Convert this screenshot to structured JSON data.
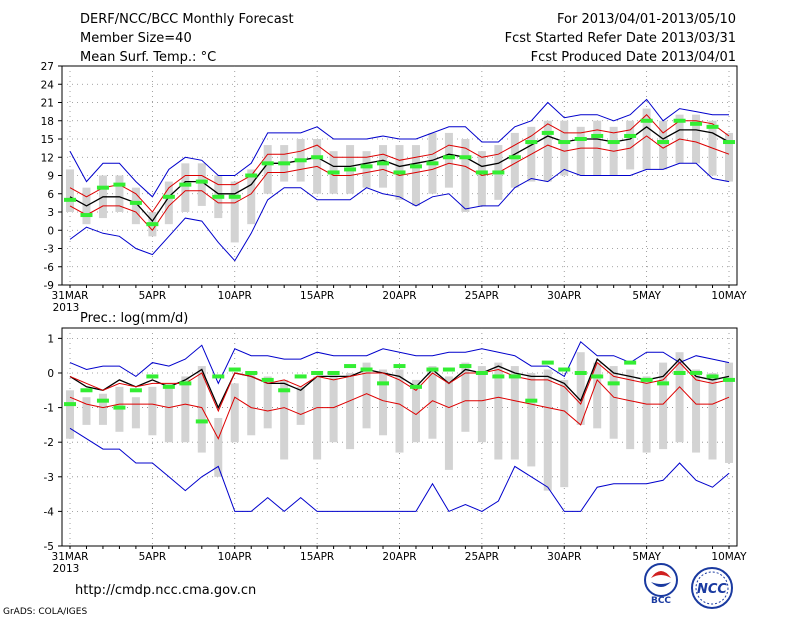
{
  "header": {
    "title": "DERF/NCC/BCC Monthly Forecast",
    "member_size": "Member Size=40",
    "variable": "Mean Surf. Temp.: °C",
    "forecast_period": "For 2013/04/01-2013/05/10",
    "started_refer": "Fcst Started Refer Date 2013/03/31",
    "produced": "Fcst Produced Date 2013/04/01"
  },
  "footer": {
    "url": "http://cmdp.ncc.cma.gov.cn",
    "grads": "GrADS: COLA/IGES",
    "logo_bcc": "BCC",
    "logo_ncc": "NCC"
  },
  "colors": {
    "gray_box": "#d3d3d3",
    "blue": "#0000cc",
    "red": "#dd0000",
    "black": "#000000",
    "green": "#33ee33"
  },
  "chart_data": [
    {
      "type": "ensemble-line",
      "title": "Mean Surf. Temp.: °C",
      "x_tick_labels": [
        "31MAR",
        "5APR",
        "10APR",
        "15APR",
        "20APR",
        "25APR",
        "30APR",
        "5MAY",
        "10MAY"
      ],
      "x_year_label": "2013",
      "yticks": [
        27,
        24,
        21,
        18,
        15,
        12,
        9,
        6,
        3,
        0,
        -3,
        -6,
        -9
      ],
      "ylim": [
        -9,
        27
      ],
      "days": 41,
      "series": [
        {
          "name": "max",
          "color": "blue",
          "values": [
            13,
            8,
            11,
            11,
            8,
            5.5,
            10,
            12,
            11.5,
            9,
            9,
            11,
            16,
            16,
            16,
            17,
            15,
            15,
            15,
            15.5,
            15,
            15,
            16,
            17,
            17,
            14.5,
            14.5,
            17,
            18,
            21,
            18.5,
            19,
            19,
            18,
            19,
            21.5,
            18,
            20,
            19.5,
            19,
            19
          ]
        },
        {
          "name": "upper",
          "color": "red",
          "values": [
            7,
            5.5,
            7,
            7.5,
            6,
            3,
            7,
            9,
            9,
            7.5,
            7.5,
            9,
            12.5,
            12.5,
            13,
            14,
            12,
            12,
            12,
            12.5,
            11.5,
            12,
            12.5,
            14,
            13.5,
            12,
            12.5,
            14,
            15.5,
            17.5,
            16,
            16,
            16.5,
            16,
            16.5,
            19,
            16,
            18,
            18,
            17.5,
            15.5
          ]
        },
        {
          "name": "mean",
          "color": "black",
          "values": [
            5.5,
            4,
            5.5,
            5.5,
            4.5,
            1.5,
            5.5,
            8,
            8,
            6,
            6,
            7.5,
            11,
            11,
            11.5,
            12,
            10.5,
            10.5,
            11,
            11.5,
            10.5,
            11,
            11.5,
            12.5,
            12,
            10.5,
            11,
            12.5,
            14,
            15.5,
            14.5,
            15,
            15,
            14.5,
            15,
            17,
            15,
            16.5,
            16.5,
            16,
            14.5
          ]
        },
        {
          "name": "lower",
          "color": "red",
          "values": [
            4,
            2.5,
            4,
            4,
            3,
            0,
            4,
            6.5,
            6.5,
            4.5,
            4.5,
            6,
            9.5,
            9.5,
            10,
            10.5,
            9,
            9,
            9.5,
            10,
            9,
            9.5,
            10,
            11,
            10.5,
            9,
            9.5,
            11,
            12.5,
            14,
            13,
            13.5,
            13.5,
            13,
            13.5,
            15.5,
            13.5,
            15,
            14.5,
            13.5,
            12.5
          ]
        },
        {
          "name": "min",
          "color": "blue",
          "values": [
            -1.5,
            0.5,
            -0.5,
            -1,
            -3,
            -4,
            -1,
            2,
            1.5,
            -2,
            -5,
            -0.5,
            5,
            7,
            7,
            5,
            5,
            5,
            7,
            6,
            5.5,
            4,
            5.5,
            6,
            3.5,
            4,
            4,
            7,
            8.5,
            8,
            10,
            9,
            9,
            9,
            9,
            10,
            10,
            11,
            11,
            8.5,
            8
          ]
        },
        {
          "name": "observed",
          "color": "green",
          "markers": true,
          "values": [
            5,
            2.5,
            7,
            7.5,
            4.5,
            1,
            5.5,
            7.5,
            8,
            5.5,
            5.5,
            9,
            11,
            11,
            11.5,
            12,
            9.5,
            10,
            10.5,
            11,
            9.5,
            10.5,
            11,
            12,
            12,
            9.5,
            9.5,
            12,
            14.5,
            16,
            14.5,
            15,
            15.5,
            14.5,
            15.5,
            18,
            14.5,
            18,
            17.5,
            17,
            14.5
          ]
        }
      ],
      "boxes": {
        "low": [
          3,
          1,
          2,
          3,
          1,
          -1,
          1,
          3,
          4,
          2,
          -2,
          1,
          6,
          8,
          8,
          6,
          6,
          6,
          7,
          7,
          5,
          4,
          6,
          7,
          3,
          4,
          5,
          7,
          8,
          8,
          9,
          9,
          9,
          9,
          10,
          10,
          10,
          11,
          11,
          9,
          8
        ],
        "high": [
          10,
          7,
          9,
          9,
          7,
          3,
          8,
          11,
          11,
          9,
          8,
          10,
          14,
          14,
          15,
          15,
          13,
          14,
          13,
          14,
          14,
          14,
          16,
          16,
          15,
          13,
          14,
          16,
          17,
          18,
          18,
          17,
          18,
          17,
          18,
          20,
          18,
          19,
          19,
          18,
          16
        ]
      }
    },
    {
      "type": "ensemble-line",
      "title": "Prec.: log(mm/d)",
      "x_tick_labels": [
        "31MAR",
        "5APR",
        "10APR",
        "15APR",
        "20APR",
        "25APR",
        "30APR",
        "5MAY",
        "10MAY"
      ],
      "x_year_label": "2013",
      "yticks": [
        1,
        0,
        -1,
        -2,
        -3,
        -4,
        -5
      ],
      "ylim": [
        -5,
        1.3
      ],
      "days": 41,
      "series": [
        {
          "name": "max",
          "color": "blue",
          "values": [
            0.3,
            0.1,
            0.2,
            0.2,
            -0.1,
            0.3,
            0.2,
            0.4,
            0.8,
            -0.3,
            0.7,
            0.5,
            0.5,
            0.4,
            0.4,
            0.6,
            0.5,
            0.5,
            0.5,
            0.7,
            0.6,
            0.5,
            0.5,
            0.6,
            0.6,
            0.7,
            0.6,
            0.5,
            0.2,
            0.2,
            -0.1,
            0.9,
            0.5,
            0.5,
            0.3,
            0.6,
            0.6,
            0.3,
            0.5,
            0.4,
            0.3
          ]
        },
        {
          "name": "mean",
          "color": "black",
          "values": [
            -0.1,
            -0.4,
            -0.5,
            -0.2,
            -0.4,
            -0.2,
            -0.4,
            -0.2,
            0.1,
            -1,
            0,
            -0.1,
            -0.3,
            -0.3,
            -0.5,
            -0.1,
            -0.1,
            -0.1,
            0.1,
            0,
            -0.1,
            -0.4,
            0.1,
            -0.3,
            0.1,
            0,
            0.2,
            0,
            -0.1,
            -0.1,
            -0.3,
            -0.8,
            0.4,
            0,
            -0.1,
            -0.2,
            -0.1,
            0.4,
            -0.1,
            -0.2,
            -0.1
          ]
        },
        {
          "name": "mean2",
          "color": "red",
          "values": [
            -0.1,
            -0.3,
            -0.5,
            -0.3,
            -0.4,
            -0.3,
            -0.3,
            -0.3,
            0,
            -1.1,
            0,
            -0.1,
            -0.3,
            -0.2,
            -0.4,
            -0.1,
            -0.2,
            -0.1,
            0,
            0,
            -0.2,
            -0.5,
            0,
            -0.3,
            0,
            0,
            0.1,
            -0.1,
            -0.2,
            -0.2,
            -0.4,
            -0.9,
            0.3,
            -0.1,
            -0.2,
            -0.3,
            -0.2,
            0.3,
            -0.2,
            -0.3,
            -0.2
          ]
        },
        {
          "name": "lower",
          "color": "red",
          "values": [
            -0.7,
            -0.9,
            -1,
            -0.9,
            -0.9,
            -0.9,
            -1,
            -0.9,
            -1,
            -1.9,
            -0.7,
            -1,
            -1.1,
            -1,
            -1.2,
            -1,
            -1,
            -0.8,
            -0.6,
            -0.8,
            -0.9,
            -1.2,
            -0.8,
            -1,
            -0.8,
            -0.8,
            -0.7,
            -0.8,
            -0.9,
            -1,
            -1.1,
            -1.5,
            -0.2,
            -0.7,
            -0.8,
            -0.9,
            -0.9,
            -0.4,
            -0.9,
            -0.9,
            -0.7
          ]
        },
        {
          "name": "min",
          "color": "blue",
          "values": [
            -1.6,
            -1.9,
            -2.2,
            -2.2,
            -2.6,
            -2.6,
            -3,
            -3.4,
            -3,
            -2.7,
            -4,
            -4,
            -3.6,
            -4,
            -3.6,
            -4,
            -4,
            -4,
            -4,
            -4,
            -4,
            -4,
            -3.2,
            -4,
            -3.8,
            -4,
            -3.7,
            -2.7,
            -3,
            -3.3,
            -4,
            -4,
            -3.3,
            -3.2,
            -3.2,
            -3.2,
            -3.1,
            -2.6,
            -3.1,
            -3.3,
            -2.9
          ]
        },
        {
          "name": "observed",
          "color": "green",
          "markers": true,
          "values": [
            -0.9,
            -0.5,
            -0.8,
            -1,
            -0.5,
            -0.1,
            -0.4,
            -0.3,
            -1.4,
            -0.1,
            0.1,
            0,
            -0.2,
            -0.5,
            -0.1,
            0,
            0,
            0.2,
            0.1,
            -0.3,
            0.2,
            -0.4,
            0.1,
            0.1,
            0.2,
            0,
            -0.1,
            -0.1,
            -0.8,
            0.3,
            0.1,
            0,
            -0.1,
            -0.3,
            0.3,
            -0.2,
            -0.3,
            0,
            0,
            -0.1,
            -0.2
          ]
        }
      ],
      "boxes": {
        "low": [
          -1.9,
          -1.5,
          -1.5,
          -1.7,
          -1.6,
          -1.8,
          -2,
          -2,
          -2.3,
          -3,
          -2,
          -1.8,
          -1.6,
          -2.5,
          -1.5,
          -2.5,
          -2,
          -2.2,
          -1.6,
          -1.8,
          -2.3,
          -2,
          -1.9,
          -2.8,
          -1.7,
          -2,
          -2.5,
          -2.5,
          -2.7,
          -3.4,
          -3.3,
          -1.5,
          -1.6,
          -1.9,
          -2.2,
          -2.3,
          -2.2,
          -2,
          -2.3,
          -2.5,
          -2.6
        ]
      },
      "boxes_high_note": "",
      "boxes_high": [
        -0.5,
        -0.7,
        -0.6,
        -0.4,
        -0.7,
        -0.4,
        -0.3,
        -0.1,
        0.2,
        -1.3,
        -0.3,
        0,
        -0.1,
        -0.2,
        -0.4,
        -0.1,
        -0.1,
        0,
        0.3,
        0.1,
        0.1,
        -0.2,
        0.2,
        -0.1,
        0.3,
        0.2,
        0.3,
        0.2,
        0,
        0.1,
        -0.2,
        0.6,
        0.3,
        0.2,
        0.1,
        -0.1,
        0.3,
        0.6,
        0.1,
        0,
        0.3
      ]
    }
  ]
}
